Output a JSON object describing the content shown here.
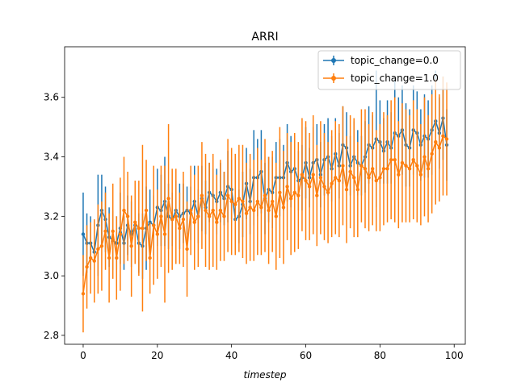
{
  "chart_data": {
    "type": "line",
    "title": "ARRI",
    "xlabel": "timestep",
    "ylabel": "",
    "xlim": [
      -5,
      103
    ],
    "ylim": [
      2.77,
      3.77
    ],
    "xticks": [
      0,
      20,
      40,
      60,
      80,
      100
    ],
    "yticks": [
      2.8,
      3.0,
      3.2,
      3.4,
      3.6
    ],
    "grid": false,
    "legend_position": "top-right",
    "x": [
      0,
      1,
      2,
      3,
      4,
      5,
      6,
      7,
      8,
      9,
      10,
      11,
      12,
      13,
      14,
      15,
      16,
      17,
      18,
      19,
      20,
      21,
      22,
      23,
      24,
      25,
      26,
      27,
      28,
      29,
      30,
      31,
      32,
      33,
      34,
      35,
      36,
      37,
      38,
      39,
      40,
      41,
      42,
      43,
      44,
      45,
      46,
      47,
      48,
      49,
      50,
      51,
      52,
      53,
      54,
      55,
      56,
      57,
      58,
      59,
      60,
      61,
      62,
      63,
      64,
      65,
      66,
      67,
      68,
      69,
      70,
      71,
      72,
      73,
      74,
      75,
      76,
      77,
      78,
      79,
      80,
      81,
      82,
      83,
      84,
      85,
      86,
      87,
      88,
      89,
      90,
      91,
      92,
      93,
      94,
      95,
      96,
      97,
      98
    ],
    "series": [
      {
        "name": "topic_change=0.0",
        "color": "#1f77b4",
        "values": [
          3.14,
          3.11,
          3.11,
          3.08,
          3.17,
          3.22,
          3.19,
          3.13,
          3.12,
          3.11,
          3.16,
          3.11,
          3.17,
          3.14,
          3.17,
          3.11,
          3.1,
          3.16,
          3.18,
          3.17,
          3.23,
          3.22,
          3.25,
          3.2,
          3.19,
          3.22,
          3.2,
          3.21,
          3.22,
          3.21,
          3.25,
          3.2,
          3.26,
          3.23,
          3.28,
          3.27,
          3.25,
          3.28,
          3.26,
          3.3,
          3.29,
          3.19,
          3.2,
          3.24,
          3.31,
          3.25,
          3.33,
          3.33,
          3.35,
          3.26,
          3.29,
          3.28,
          3.33,
          3.33,
          3.33,
          3.38,
          3.35,
          3.36,
          3.32,
          3.33,
          3.38,
          3.33,
          3.38,
          3.39,
          3.34,
          3.39,
          3.4,
          3.36,
          3.41,
          3.37,
          3.44,
          3.43,
          3.37,
          3.4,
          3.38,
          3.37,
          3.4,
          3.44,
          3.43,
          3.46,
          3.45,
          3.42,
          3.45,
          3.43,
          3.48,
          3.47,
          3.49,
          3.44,
          3.43,
          3.49,
          3.48,
          3.44,
          3.47,
          3.46,
          3.49,
          3.52,
          3.48,
          3.53,
          3.44
        ],
        "errors": [
          0.14,
          0.1,
          0.09,
          0.08,
          0.17,
          0.12,
          0.11,
          0.1,
          0.1,
          0.09,
          0.12,
          0.09,
          0.1,
          0.11,
          0.12,
          0.1,
          0.11,
          0.14,
          0.11,
          0.1,
          0.13,
          0.12,
          0.15,
          0.11,
          0.09,
          0.1,
          0.11,
          0.1,
          0.08,
          0.09,
          0.12,
          0.09,
          0.11,
          0.09,
          0.1,
          0.09,
          0.11,
          0.1,
          0.09,
          0.12,
          0.1,
          0.08,
          0.09,
          0.11,
          0.12,
          0.11,
          0.16,
          0.13,
          0.14,
          0.12,
          0.11,
          0.12,
          0.12,
          0.13,
          0.11,
          0.13,
          0.12,
          0.11,
          0.1,
          0.11,
          0.12,
          0.1,
          0.12,
          0.12,
          0.11,
          0.12,
          0.13,
          0.11,
          0.12,
          0.11,
          0.13,
          0.12,
          0.1,
          0.12,
          0.11,
          0.1,
          0.12,
          0.13,
          0.11,
          0.23,
          0.14,
          0.11,
          0.14,
          0.12,
          0.18,
          0.13,
          0.15,
          0.14,
          0.13,
          0.15,
          0.14,
          0.12,
          0.14,
          0.13,
          0.15,
          0.17,
          0.12,
          0.14,
          0.12
        ]
      },
      {
        "name": "topic_change=1.0",
        "color": "#ff7f0e",
        "values": [
          2.94,
          3.03,
          3.06,
          3.05,
          3.09,
          3.1,
          3.15,
          3.06,
          3.15,
          3.06,
          3.14,
          3.22,
          3.2,
          3.1,
          3.18,
          3.16,
          3.16,
          3.22,
          3.06,
          3.17,
          3.14,
          3.2,
          3.14,
          3.26,
          3.19,
          3.2,
          3.16,
          3.19,
          3.09,
          3.22,
          3.18,
          3.2,
          3.27,
          3.22,
          3.2,
          3.22,
          3.18,
          3.22,
          3.2,
          3.27,
          3.25,
          3.24,
          3.26,
          3.25,
          3.21,
          3.23,
          3.22,
          3.25,
          3.23,
          3.27,
          3.22,
          3.25,
          3.2,
          3.28,
          3.23,
          3.3,
          3.26,
          3.28,
          3.27,
          3.34,
          3.32,
          3.3,
          3.34,
          3.27,
          3.33,
          3.3,
          3.28,
          3.31,
          3.33,
          3.32,
          3.37,
          3.29,
          3.35,
          3.33,
          3.29,
          3.37,
          3.36,
          3.33,
          3.36,
          3.32,
          3.33,
          3.36,
          3.36,
          3.39,
          3.39,
          3.34,
          3.38,
          3.37,
          3.36,
          3.39,
          3.37,
          3.34,
          3.4,
          3.36,
          3.41,
          3.45,
          3.43,
          3.47,
          3.46
        ],
        "errors": [
          0.13,
          0.14,
          0.12,
          0.14,
          0.15,
          0.15,
          0.13,
          0.15,
          0.16,
          0.14,
          0.19,
          0.18,
          0.15,
          0.17,
          0.14,
          0.16,
          0.28,
          0.17,
          0.12,
          0.2,
          0.15,
          0.17,
          0.23,
          0.25,
          0.17,
          0.16,
          0.12,
          0.16,
          0.16,
          0.15,
          0.16,
          0.17,
          0.18,
          0.19,
          0.18,
          0.19,
          0.16,
          0.17,
          0.15,
          0.19,
          0.18,
          0.17,
          0.18,
          0.19,
          0.17,
          0.18,
          0.17,
          0.18,
          0.16,
          0.19,
          0.18,
          0.17,
          0.18,
          0.22,
          0.19,
          0.18,
          0.19,
          0.2,
          0.18,
          0.19,
          0.2,
          0.18,
          0.2,
          0.17,
          0.19,
          0.18,
          0.17,
          0.18,
          0.19,
          0.19,
          0.2,
          0.18,
          0.19,
          0.2,
          0.16,
          0.19,
          0.2,
          0.18,
          0.19,
          0.17,
          0.18,
          0.19,
          0.18,
          0.2,
          0.21,
          0.18,
          0.2,
          0.19,
          0.18,
          0.2,
          0.19,
          0.17,
          0.2,
          0.18,
          0.2,
          0.21,
          0.18,
          0.2,
          0.19
        ]
      }
    ]
  }
}
